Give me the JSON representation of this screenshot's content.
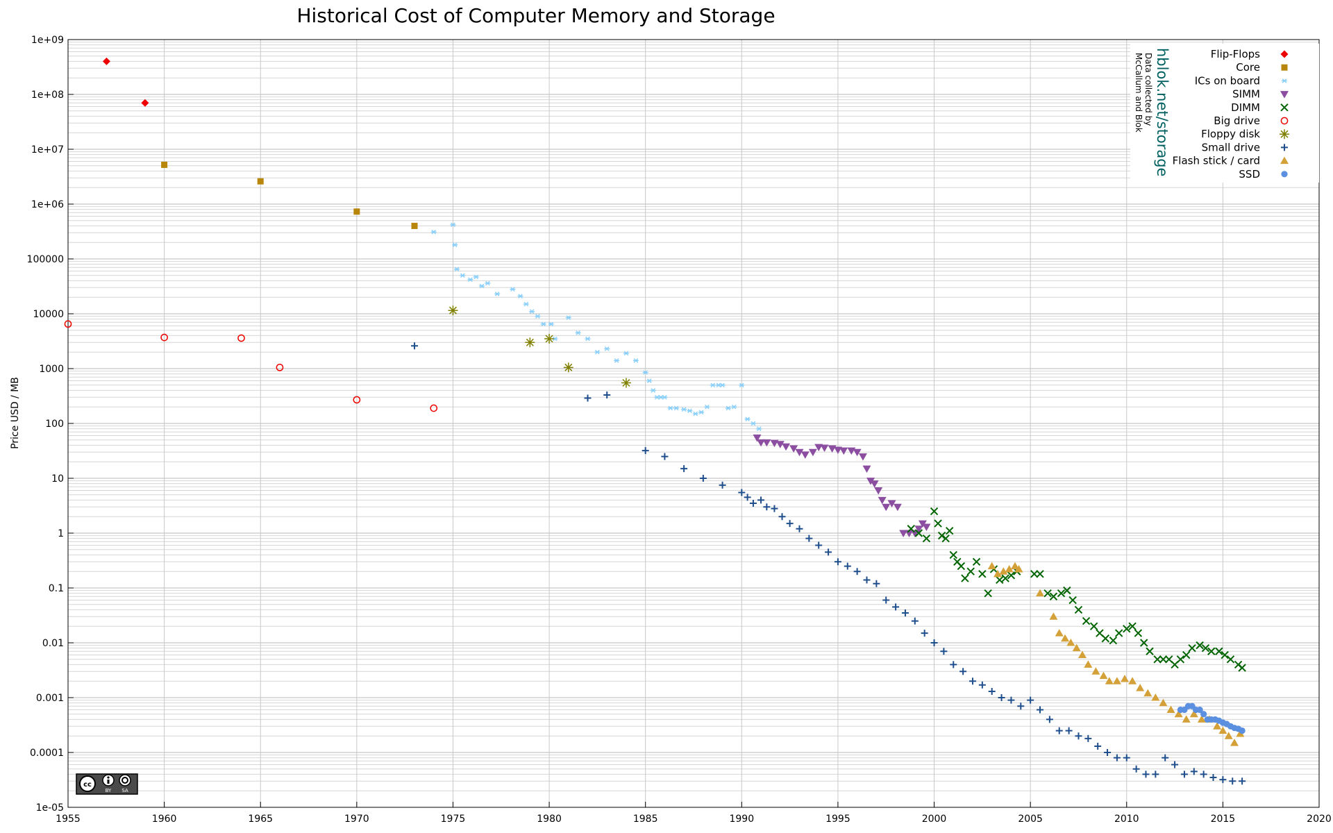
{
  "chart_data": {
    "type": "scatter",
    "title": "Historical Cost of Computer Memory and Storage",
    "xlabel": "",
    "ylabel": "Price USD / MB",
    "xlim": [
      1955,
      2020
    ],
    "ylim": [
      1e-05,
      1000000000.0
    ],
    "y_scale": "log",
    "grid": true,
    "legend_position": "top-right",
    "x_ticks": [
      "1955",
      "1960",
      "1965",
      "1970",
      "1975",
      "1980",
      "1985",
      "1990",
      "1995",
      "2000",
      "2005",
      "2010",
      "2015",
      "2020"
    ],
    "y_ticks": [
      "1e-05",
      "0.0001",
      "0.001",
      "0.01",
      "0.1",
      "1",
      "10",
      "100",
      "1000",
      "10000",
      "100000",
      "1e+06",
      "1e+07",
      "1e+08",
      "1e+09"
    ],
    "annotation_brand": "hblok.net/storage",
    "annotation_credit_line1": "Data collected by",
    "annotation_credit_line2": "McCallum and Blok",
    "license_badge": {
      "cc": "cc",
      "by": "BY",
      "sa": "SA"
    },
    "series": [
      {
        "name": "Flip-Flops",
        "marker": "diamond",
        "color": "#ee0000",
        "x": [
          1957,
          1959
        ],
        "y": [
          400000000,
          70000000
        ]
      },
      {
        "name": "Core",
        "marker": "square",
        "color": "#b8860b",
        "x": [
          1960,
          1965,
          1970,
          1973
        ],
        "y": [
          5200000,
          2600000,
          730000,
          400000
        ]
      },
      {
        "name": "ICs on board",
        "marker": "asterisk",
        "color": "#87cefa",
        "x": [
          1974,
          1975,
          1975.1,
          1975.2,
          1975.5,
          1975.9,
          1976.2,
          1976.5,
          1976.8,
          1977.3,
          1978.1,
          1978.5,
          1978.8,
          1979.1,
          1979.4,
          1979.7,
          1980.1,
          1980.3,
          1981.0,
          1981.5,
          1982.0,
          1982.5,
          1983.0,
          1983.5,
          1984.0,
          1984.5,
          1985.0,
          1985.2,
          1985.4,
          1985.6,
          1985.8,
          1986.0,
          1986.3,
          1986.6,
          1987.0,
          1987.3,
          1987.6,
          1987.9,
          1988.2,
          1988.5,
          1988.8,
          1989.0,
          1989.3,
          1989.6,
          1990.0,
          1990.3,
          1990.6,
          1990.9
        ],
        "y": [
          310000,
          420000,
          180000,
          65000,
          50000,
          42000,
          47000,
          32000,
          36000,
          23000,
          28000,
          21000,
          15000,
          11000,
          9000,
          6500,
          6500,
          3500,
          8500,
          4500,
          3500,
          2000,
          2300,
          1400,
          1900,
          1400,
          850,
          600,
          400,
          300,
          300,
          300,
          190,
          190,
          180,
          170,
          150,
          160,
          200,
          500,
          500,
          500,
          190,
          200,
          500,
          120,
          100,
          80
        ]
      },
      {
        "name": "SIMM",
        "marker": "triangle-down",
        "color": "#8b4ea0",
        "x": [
          1990.8,
          1991.0,
          1991.3,
          1991.7,
          1992.0,
          1992.3,
          1992.7,
          1993.0,
          1993.3,
          1993.7,
          1994.0,
          1994.3,
          1994.7,
          1995.0,
          1995.3,
          1995.7,
          1996.0,
          1996.3,
          1996.5,
          1996.7,
          1996.9,
          1997.1,
          1997.3,
          1997.5,
          1997.8,
          1998.1,
          1998.4,
          1998.7,
          1999.0,
          1999.2,
          1999.4,
          1999.6
        ],
        "y": [
          55,
          45,
          45,
          44,
          42,
          38,
          35,
          30,
          27,
          30,
          37,
          36,
          35,
          33,
          32,
          32,
          30,
          25,
          15,
          9,
          8,
          6,
          4,
          3,
          3.5,
          3,
          1,
          1,
          1,
          1.2,
          1.5,
          1.3
        ]
      },
      {
        "name": "DIMM",
        "marker": "x",
        "color": "#006400",
        "x": [
          1998.8,
          1999.2,
          1999.6,
          2000.0,
          2000.2,
          2000.4,
          2000.6,
          2000.8,
          2001.0,
          2001.2,
          2001.4,
          2001.6,
          2001.9,
          2002.2,
          2002.5,
          2002.8,
          2003.1,
          2003.4,
          2003.7,
          2004.0,
          2004.3,
          2005.2,
          2005.5,
          2005.9,
          2006.2,
          2006.6,
          2006.9,
          2007.2,
          2007.5,
          2007.9,
          2008.3,
          2008.6,
          2008.9,
          2009.3,
          2009.6,
          2010.0,
          2010.3,
          2010.6,
          2010.9,
          2011.2,
          2011.6,
          2011.9,
          2012.2,
          2012.5,
          2012.8,
          2013.1,
          2013.4,
          2013.8,
          2014.1,
          2014.4,
          2014.8,
          2015.1,
          2015.4,
          2015.8,
          2016.0
        ],
        "y": [
          1.2,
          1.0,
          0.8,
          2.5,
          1.5,
          0.9,
          0.8,
          1.1,
          0.4,
          0.3,
          0.25,
          0.15,
          0.2,
          0.3,
          0.18,
          0.08,
          0.22,
          0.14,
          0.15,
          0.17,
          0.2,
          0.18,
          0.18,
          0.08,
          0.07,
          0.08,
          0.09,
          0.06,
          0.04,
          0.025,
          0.02,
          0.015,
          0.012,
          0.011,
          0.015,
          0.018,
          0.02,
          0.015,
          0.01,
          0.007,
          0.005,
          0.005,
          0.005,
          0.004,
          0.005,
          0.006,
          0.008,
          0.009,
          0.008,
          0.007,
          0.007,
          0.006,
          0.005,
          0.004,
          0.0035
        ]
      },
      {
        "name": "Big drive",
        "marker": "circle-open",
        "color": "#ee0000",
        "x": [
          1955,
          1960,
          1964,
          1966,
          1970,
          1974
        ],
        "y": [
          6500,
          3700,
          3600,
          1050,
          270,
          190
        ]
      },
      {
        "name": "Floppy disk",
        "marker": "star",
        "color": "#808000",
        "x": [
          1975,
          1979,
          1980,
          1981,
          1984
        ],
        "y": [
          11500,
          3000,
          3500,
          1050,
          550
        ]
      },
      {
        "name": "Small drive",
        "marker": "plus",
        "color": "#1f4e8c",
        "x": [
          1973,
          1982,
          1983,
          1985,
          1986,
          1987,
          1988,
          1989,
          1990,
          1990.3,
          1990.6,
          1991.0,
          1991.3,
          1991.7,
          1992.1,
          1992.5,
          1993.0,
          1993.5,
          1994.0,
          1994.5,
          1995.0,
          1995.5,
          1996.0,
          1996.5,
          1997.0,
          1997.5,
          1998.0,
          1998.5,
          1999.0,
          1999.5,
          2000.0,
          2000.5,
          2001.0,
          2001.5,
          2002.0,
          2002.5,
          2003.0,
          2003.5,
          2004.0,
          2004.5,
          2005.0,
          2005.5,
          2006.0,
          2006.5,
          2007.0,
          2007.5,
          2008.0,
          2008.5,
          2009.0,
          2009.5,
          2010.0,
          2010.5,
          2011.0,
          2011.5,
          2012.0,
          2012.5,
          2013.0,
          2013.5,
          2014.0,
          2014.5,
          2015.0,
          2015.5,
          2016.0
        ],
        "y": [
          2600,
          290,
          330,
          32,
          25,
          15,
          10,
          7.5,
          5.5,
          4.5,
          3.5,
          4,
          3,
          2.8,
          2,
          1.5,
          1.2,
          0.8,
          0.6,
          0.45,
          0.3,
          0.25,
          0.2,
          0.14,
          0.12,
          0.06,
          0.045,
          0.035,
          0.025,
          0.015,
          0.01,
          0.007,
          0.004,
          0.003,
          0.002,
          0.0017,
          0.0013,
          0.001,
          0.0009,
          0.0007,
          0.0009,
          0.0006,
          0.0004,
          0.00025,
          0.00025,
          0.0002,
          0.00018,
          0.00013,
          0.0001,
          8e-05,
          8e-05,
          5e-05,
          4e-05,
          4e-05,
          8e-05,
          6e-05,
          4e-05,
          4.5e-05,
          4e-05,
          3.5e-05,
          3.2e-05,
          3e-05,
          3e-05
        ]
      },
      {
        "name": "Flash stick / card",
        "marker": "triangle-up",
        "color": "#d4a038",
        "x": [
          2003.0,
          2003.3,
          2003.6,
          2003.9,
          2004.2,
          2004.4,
          2005.5,
          2006.2,
          2006.5,
          2006.8,
          2007.1,
          2007.4,
          2007.7,
          2008.0,
          2008.4,
          2008.8,
          2009.1,
          2009.5,
          2009.9,
          2010.3,
          2010.7,
          2011.1,
          2011.5,
          2011.9,
          2012.3,
          2012.7,
          2013.1,
          2013.5,
          2013.9,
          2014.3,
          2014.7,
          2015.0,
          2015.3,
          2015.6,
          2015.9
        ],
        "y": [
          0.25,
          0.18,
          0.2,
          0.22,
          0.25,
          0.22,
          0.08,
          0.03,
          0.015,
          0.012,
          0.01,
          0.008,
          0.006,
          0.004,
          0.003,
          0.0025,
          0.002,
          0.002,
          0.0022,
          0.002,
          0.0015,
          0.0012,
          0.001,
          0.0008,
          0.0006,
          0.0005,
          0.0004,
          0.0005,
          0.0004,
          0.0004,
          0.0003,
          0.00025,
          0.0002,
          0.00015,
          0.00022
        ]
      },
      {
        "name": "SSD",
        "marker": "circle",
        "color": "#5b8fe0",
        "x": [
          2012.8,
          2013.0,
          2013.2,
          2013.4,
          2013.6,
          2013.8,
          2014.0,
          2014.2,
          2014.4,
          2014.6,
          2014.8,
          2015.0,
          2015.2,
          2015.4,
          2015.6,
          2015.8,
          2016.0
        ],
        "y": [
          0.0006,
          0.0006,
          0.0007,
          0.0007,
          0.0006,
          0.0006,
          0.0005,
          0.0004,
          0.0004,
          0.0004,
          0.00038,
          0.00035,
          0.00033,
          0.0003,
          0.00028,
          0.00027,
          0.00025
        ]
      }
    ]
  }
}
